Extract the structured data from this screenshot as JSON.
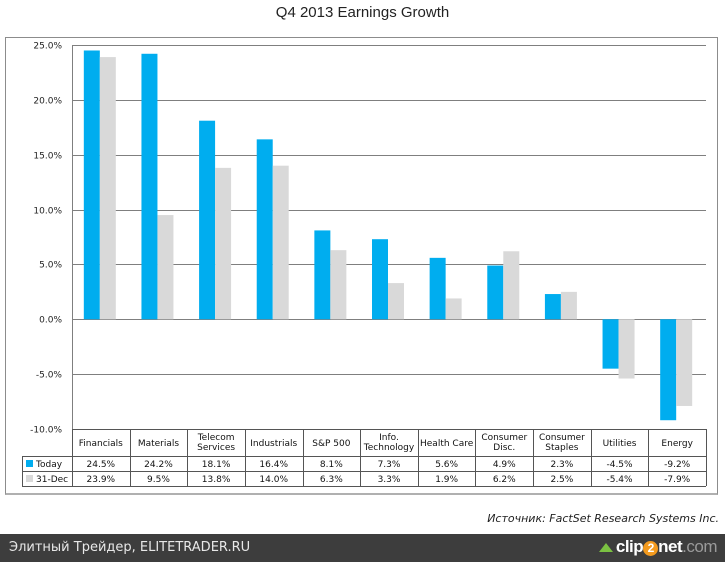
{
  "chart_data": {
    "type": "bar",
    "title": "Q4 2013 Earnings Growth",
    "xlabel": "",
    "ylabel": "",
    "ylim": [
      -10,
      25
    ],
    "yticks": [
      25,
      20,
      15,
      10,
      5,
      0,
      -5,
      -10
    ],
    "ytick_labels": [
      "25.0%",
      "20.0%",
      "15.0%",
      "10.0%",
      "5.0%",
      "0.0%",
      "-5.0%",
      "-10.0%"
    ],
    "grid": true,
    "legend": "data-table-left",
    "categories": [
      [
        "Financials"
      ],
      [
        "Materials"
      ],
      [
        "Telecom",
        "Services"
      ],
      [
        "Industrials"
      ],
      [
        "S&P 500"
      ],
      [
        "Info.",
        "Technology"
      ],
      [
        "Health Care"
      ],
      [
        "Consumer",
        "Disc."
      ],
      [
        "Consumer",
        "Staples"
      ],
      [
        "Utilities"
      ],
      [
        "Energy"
      ]
    ],
    "series": [
      {
        "name": "Today",
        "color": "#00adef",
        "values": [
          24.5,
          24.2,
          18.1,
          16.4,
          8.1,
          7.3,
          5.6,
          4.9,
          2.3,
          -4.5,
          -9.2
        ],
        "labels": [
          "24.5%",
          "24.2%",
          "18.1%",
          "16.4%",
          "8.1%",
          "7.3%",
          "5.6%",
          "4.9%",
          "2.3%",
          "-4.5%",
          "-9.2%"
        ]
      },
      {
        "name": "31-Dec",
        "color": "#d9d9d9",
        "values": [
          23.9,
          9.5,
          13.8,
          14.0,
          6.3,
          3.3,
          1.9,
          6.2,
          2.5,
          -5.4,
          -7.9
        ],
        "labels": [
          "23.9%",
          "9.5%",
          "13.8%",
          "14.0%",
          "6.3%",
          "3.3%",
          "1.9%",
          "6.2%",
          "2.5%",
          "-5.4%",
          "-7.9%"
        ]
      }
    ]
  },
  "source": "Источник: FactSet Research Systems Inc.",
  "footer": {
    "text": "Элитный Трейдер, ELITETRADER.RU",
    "brand_a": "clip",
    "brand_b": "2",
    "brand_c": "net",
    "brand_d": ".com"
  }
}
